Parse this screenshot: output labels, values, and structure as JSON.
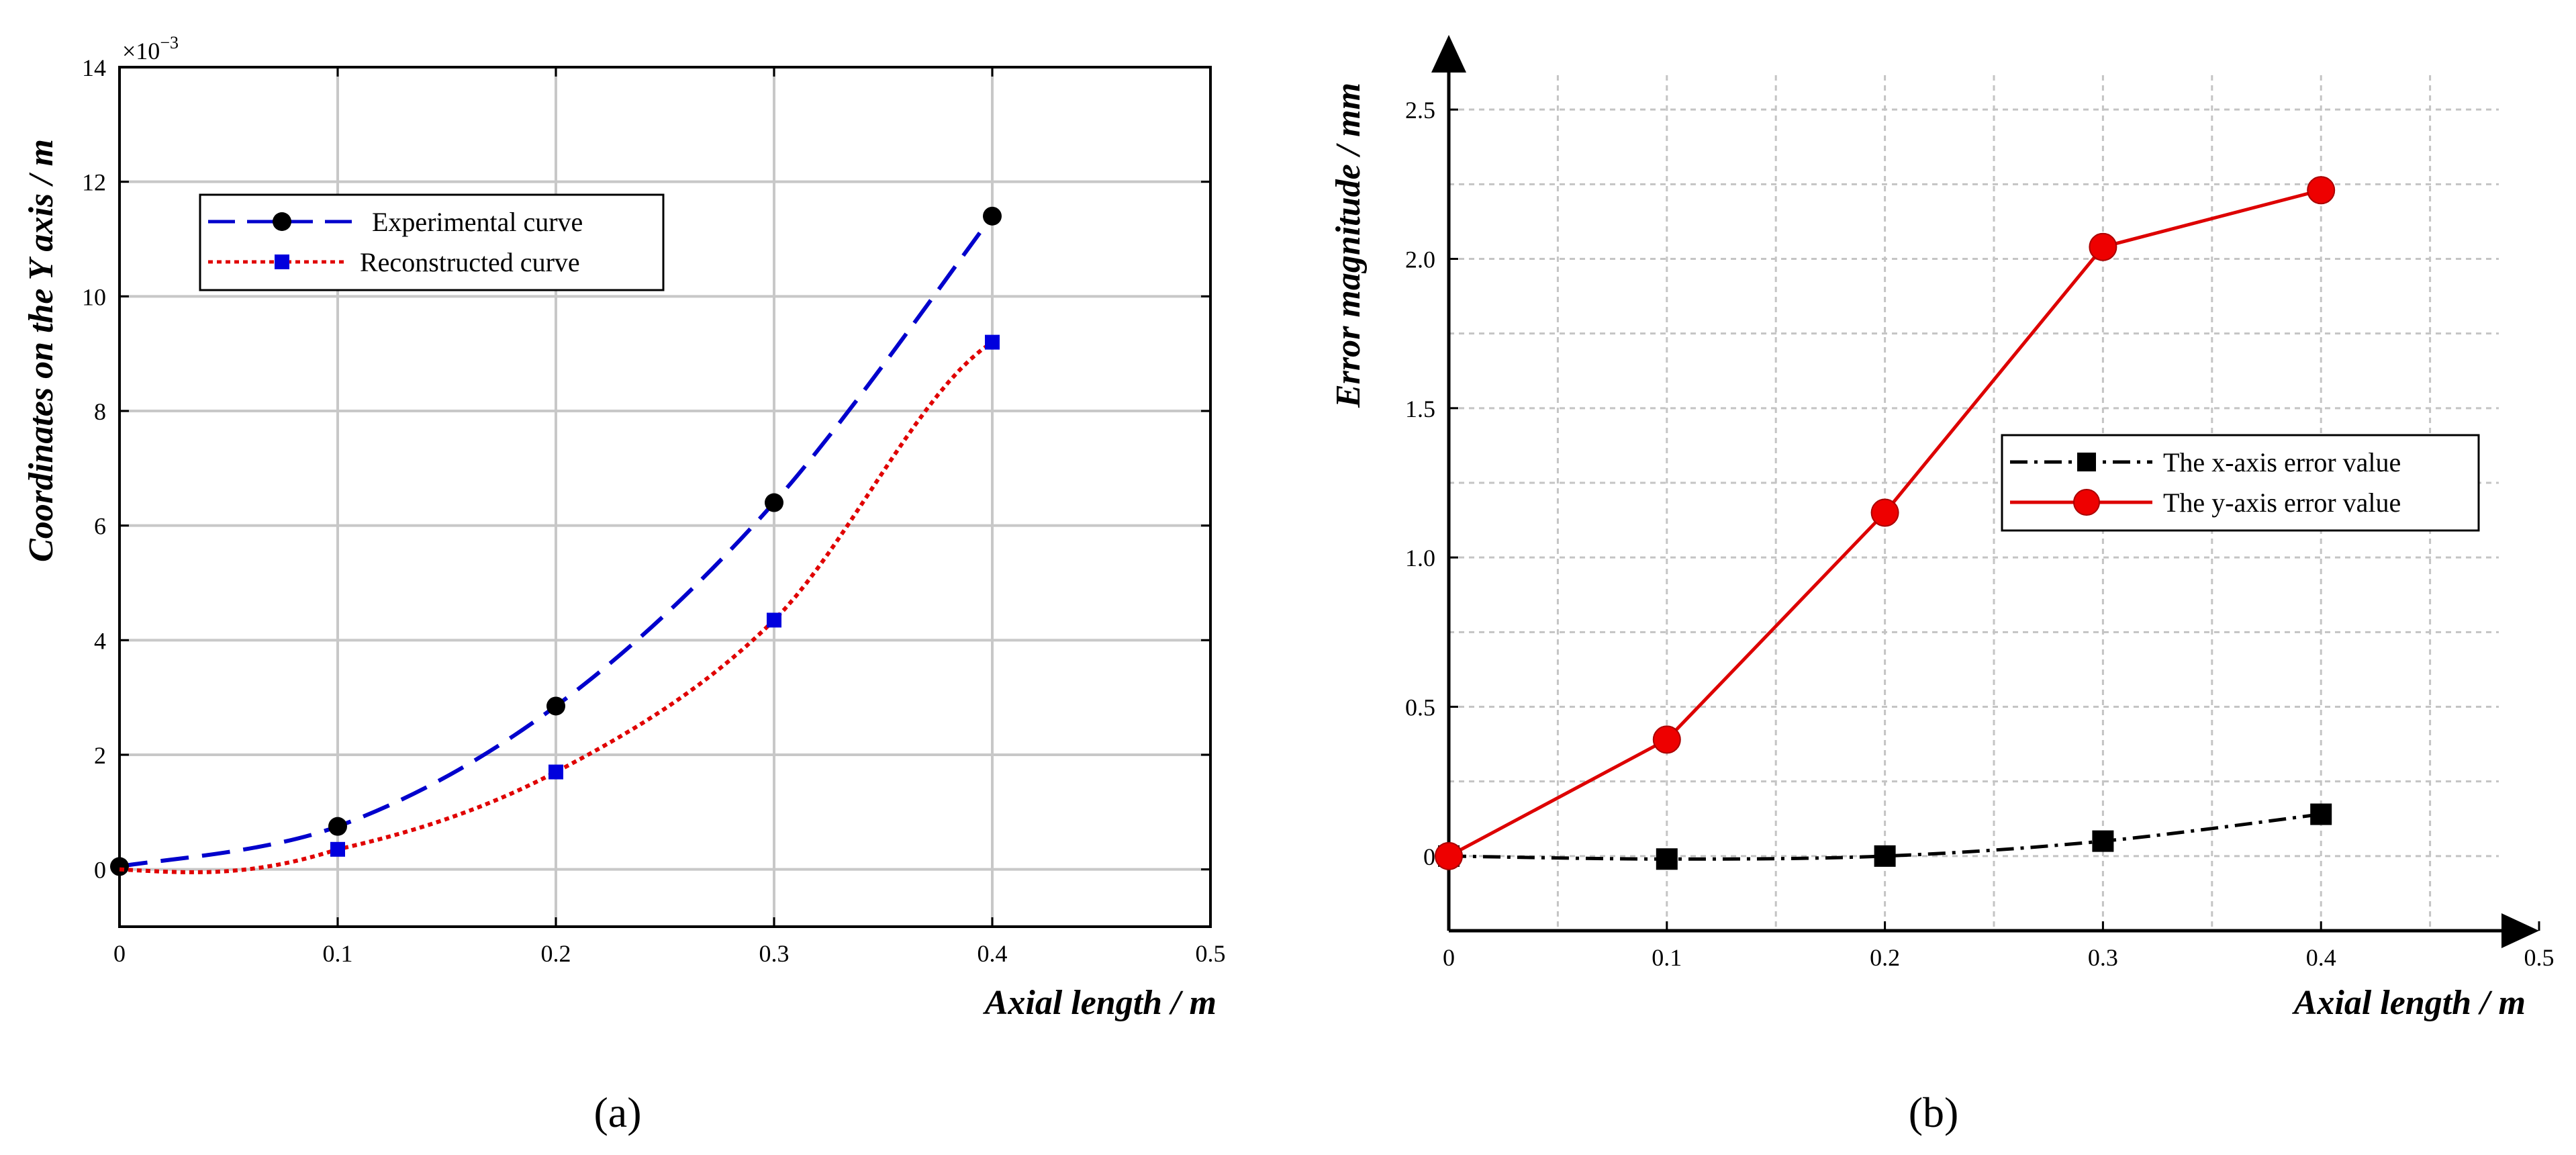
{
  "chart_data": [
    {
      "panel": "a",
      "type": "line",
      "caption": "(a)",
      "xlabel": "Axial length / m",
      "ylabel": "Coordinates on the Y axis / m",
      "exponent_label": "×10",
      "exponent_power": "−3",
      "xlim": [
        0,
        0.5
      ],
      "ylim": [
        -1,
        14
      ],
      "xticks": [
        0,
        0.1,
        0.2,
        0.3,
        0.4,
        0.5
      ],
      "xtick_labels": [
        "0",
        "0.1",
        "0.2",
        "0.3",
        "0.4",
        "0.5"
      ],
      "yticks": [
        0,
        2,
        4,
        6,
        8,
        10,
        12,
        14
      ],
      "ytick_labels": [
        "0",
        "2",
        "4",
        "6",
        "8",
        "10",
        "12",
        "14"
      ],
      "grid": true,
      "legend_position": "upper-left",
      "series": [
        {
          "name": "Experimental curve",
          "color": "#0000cc",
          "marker": "circle",
          "marker_color": "#000000",
          "line_style": "dashed",
          "x": [
            0,
            0.1,
            0.2,
            0.3,
            0.4
          ],
          "y": [
            0.05,
            0.75,
            2.85,
            6.4,
            11.4
          ]
        },
        {
          "name": "Reconstructed curve",
          "color": "#e00000",
          "marker": "square",
          "marker_color": "#0000dd",
          "line_style": "dotted",
          "x": [
            0,
            0.1,
            0.2,
            0.3,
            0.4
          ],
          "y": [
            0.0,
            0.35,
            1.7,
            4.35,
            9.2
          ]
        }
      ]
    },
    {
      "panel": "b",
      "type": "line",
      "caption": "(b)",
      "xlabel": "Axial length / m",
      "ylabel": "Error magnitude / mm",
      "xlim": [
        0,
        0.5
      ],
      "ylim": [
        -0.25,
        2.75
      ],
      "xticks": [
        0,
        0.1,
        0.2,
        0.3,
        0.4,
        0.5
      ],
      "xtick_labels": [
        "0",
        "0.1",
        "0.2",
        "0.3",
        "0.4",
        "0.5"
      ],
      "yticks": [
        0,
        0.5,
        1.0,
        1.5,
        2.0,
        2.5
      ],
      "ytick_labels": [
        "0",
        "0.5",
        "1.0",
        "1.5",
        "2.0",
        "2.5"
      ],
      "grid": true,
      "legend_position": "center-right",
      "series": [
        {
          "name": "The x-axis error value",
          "color": "#000000",
          "marker": "square",
          "marker_color": "#000000",
          "line_style": "dashdot",
          "x": [
            0,
            0.1,
            0.2,
            0.3,
            0.4
          ],
          "y": [
            0.0,
            -0.01,
            0.0,
            0.05,
            0.14
          ]
        },
        {
          "name": "The y-axis error value",
          "color": "#dd0000",
          "marker": "circle",
          "marker_color": "#ee0000",
          "line_style": "solid",
          "x": [
            0,
            0.1,
            0.2,
            0.3,
            0.4
          ],
          "y": [
            0.0,
            0.39,
            1.15,
            2.04,
            2.23
          ]
        }
      ]
    }
  ]
}
